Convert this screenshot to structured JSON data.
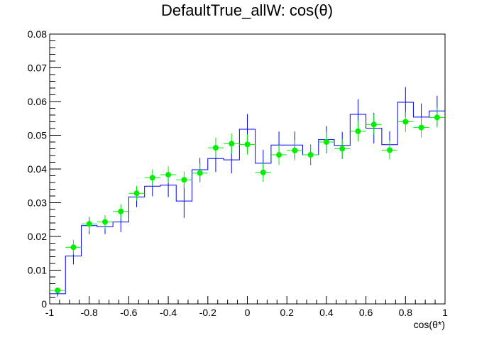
{
  "chart_data": {
    "type": "line",
    "title": "DefaultTrue_allW: cos(θ)",
    "xlabel": "cos(θ*)",
    "ylabel": "",
    "xlim": [
      -1,
      1
    ],
    "ylim": [
      0,
      0.08
    ],
    "x_ticks": [
      "-1",
      "-0.8",
      "-0.6",
      "-0.4",
      "-0.2",
      "0",
      "0.2",
      "0.4",
      "0.6",
      "0.8",
      "1"
    ],
    "y_ticks": [
      "0",
      "0.01",
      "0.02",
      "0.03",
      "0.04",
      "0.05",
      "0.06",
      "0.07",
      "0.08"
    ],
    "bin_edges": [
      -1,
      -0.92,
      -0.84,
      -0.76,
      -0.68,
      -0.6,
      -0.52,
      -0.44,
      -0.36,
      -0.28,
      -0.2,
      -0.12,
      -0.04,
      0.04,
      0.12,
      0.2,
      0.28,
      0.36,
      0.44,
      0.52,
      0.6,
      0.68,
      0.76,
      0.84,
      0.92,
      1
    ],
    "grid": false,
    "legend": "none",
    "series": [
      {
        "style": "histogram",
        "color": "#0000ff",
        "values": [
          0.003,
          0.0142,
          0.0232,
          0.0229,
          0.0243,
          0.0317,
          0.0349,
          0.0352,
          0.0305,
          0.0398,
          0.0431,
          0.0427,
          0.0518,
          0.0417,
          0.0471,
          0.0471,
          0.0442,
          0.0487,
          0.047,
          0.0562,
          0.0521,
          0.0472,
          0.0598,
          0.0554,
          0.0572
        ],
        "errors": [
          0.0008,
          0.0025,
          0.0025,
          0.0022,
          0.003,
          0.003,
          0.003,
          0.0035,
          0.005,
          0.0035,
          0.004,
          0.004,
          0.0045,
          0.004,
          0.004,
          0.004,
          0.003,
          0.004,
          0.004,
          0.0045,
          0.0045,
          0.004,
          0.0045,
          0.004,
          0.0045
        ]
      },
      {
        "style": "markers",
        "color": "#00ee00",
        "values": [
          0.004,
          0.0168,
          0.0237,
          0.0243,
          0.0274,
          0.0328,
          0.0374,
          0.0383,
          0.0368,
          0.0388,
          0.0463,
          0.0475,
          0.0473,
          0.039,
          0.0442,
          0.0455,
          0.0442,
          0.048,
          0.046,
          0.0512,
          0.0532,
          0.0456,
          0.054,
          0.0523,
          0.0553
        ],
        "errors": [
          0.0006,
          0.0022,
          0.0022,
          0.002,
          0.0022,
          0.0022,
          0.0025,
          0.0025,
          0.0025,
          0.0028,
          0.003,
          0.003,
          0.003,
          0.0028,
          0.003,
          0.003,
          0.0028,
          0.003,
          0.0028,
          0.003,
          0.003,
          0.0028,
          0.003,
          0.003,
          0.003
        ]
      }
    ]
  }
}
